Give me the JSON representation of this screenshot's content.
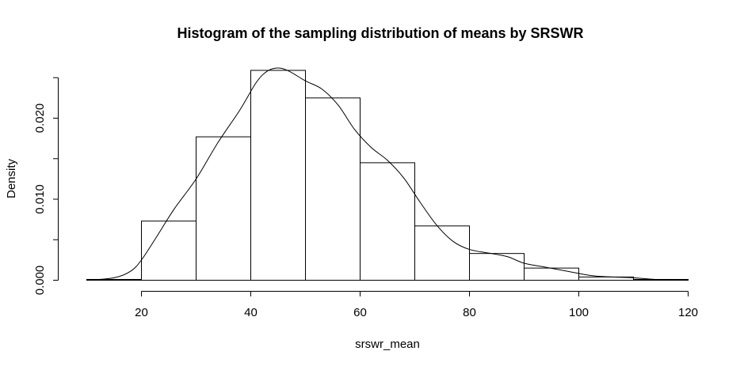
{
  "chart_data": {
    "type": "bar",
    "title": "Histogram of the sampling distribution of means by SRSWR",
    "xlabel": "srswr_mean",
    "ylabel": "Density",
    "xlim": [
      10,
      120
    ],
    "ylim": [
      0,
      0.025
    ],
    "x_ticks": [
      20,
      40,
      60,
      80,
      100,
      120
    ],
    "y_ticks": [
      0.0,
      0.01,
      0.02
    ],
    "y_tick_labels": [
      "0.000",
      "0.010",
      "0.020"
    ],
    "grid": false,
    "bins": [
      {
        "start": 10,
        "end": 20,
        "density": 0.0001
      },
      {
        "start": 20,
        "end": 30,
        "density": 0.0073
      },
      {
        "start": 30,
        "end": 40,
        "density": 0.0177
      },
      {
        "start": 40,
        "end": 50,
        "density": 0.0259
      },
      {
        "start": 50,
        "end": 60,
        "density": 0.0225
      },
      {
        "start": 60,
        "end": 70,
        "density": 0.0145
      },
      {
        "start": 70,
        "end": 80,
        "density": 0.0067
      },
      {
        "start": 80,
        "end": 90,
        "density": 0.0033
      },
      {
        "start": 90,
        "end": 100,
        "density": 0.0015
      },
      {
        "start": 100,
        "end": 110,
        "density": 0.0004
      },
      {
        "start": 110,
        "end": 120,
        "density": 0.0001
      }
    ],
    "density_curve": [
      [
        10,
        0.0
      ],
      [
        15,
        0.0003
      ],
      [
        18,
        0.0011
      ],
      [
        20,
        0.0025
      ],
      [
        23,
        0.0056
      ],
      [
        26,
        0.0088
      ],
      [
        30,
        0.0125
      ],
      [
        34,
        0.017
      ],
      [
        38,
        0.021
      ],
      [
        41,
        0.0244
      ],
      [
        43,
        0.0258
      ],
      [
        45,
        0.0262
      ],
      [
        47,
        0.0258
      ],
      [
        50,
        0.0246
      ],
      [
        53,
        0.0236
      ],
      [
        56,
        0.0216
      ],
      [
        59,
        0.0186
      ],
      [
        62,
        0.0164
      ],
      [
        65,
        0.0148
      ],
      [
        68,
        0.0126
      ],
      [
        71,
        0.0096
      ],
      [
        74,
        0.0068
      ],
      [
        77,
        0.0048
      ],
      [
        80,
        0.0038
      ],
      [
        84,
        0.0033
      ],
      [
        87,
        0.0029
      ],
      [
        90,
        0.0021
      ],
      [
        94,
        0.0016
      ],
      [
        98,
        0.0011
      ],
      [
        102,
        0.0006
      ],
      [
        106,
        0.0004
      ],
      [
        110,
        0.0003
      ],
      [
        114,
        0.0001
      ],
      [
        120,
        0.0
      ]
    ]
  }
}
